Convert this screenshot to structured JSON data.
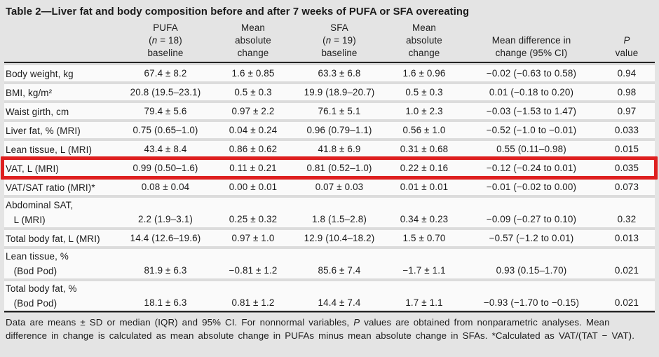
{
  "title": "Table 2—Liver fat and body composition before and after 7 weeks of PUFA or SFA overeating",
  "colors": {
    "highlight_red": "#de1f1f",
    "row_bg": "#fafafa",
    "page_bg": "#e4e4e4",
    "rule_black": "#232323"
  },
  "header": {
    "pufa": {
      "line1": "PUFA",
      "n_open": "(",
      "n": "n",
      "n_rest": " = 18)",
      "line3": "baseline"
    },
    "abs1": {
      "line1": "Mean",
      "line2": "absolute",
      "line3": "change"
    },
    "sfa": {
      "line1": "SFA",
      "n_open": "(",
      "n": "n",
      "n_rest": " = 19)",
      "line3": "baseline"
    },
    "abs2": {
      "line1": "Mean",
      "line2": "absolute",
      "line3": "change"
    },
    "diff": {
      "line1": "Mean difference in",
      "line2": "change (95% CI)"
    },
    "p": {
      "line1": "P",
      "line2": "value"
    }
  },
  "rows": [
    {
      "label": "Body weight, kg",
      "cells": [
        "67.4 ± 8.2",
        "1.6 ± 0.85",
        "63.3 ± 6.8",
        "1.6 ± 0.96",
        "−0.02 (−0.63 to 0.58)",
        "0.94"
      ],
      "highlight": false
    },
    {
      "label": "BMI, kg/m²",
      "cells": [
        "20.8 (19.5–23.1)",
        "0.5 ± 0.3",
        "19.9 (18.9–20.7)",
        "0.5 ± 0.3",
        "0.01 (−0.18 to 0.20)",
        "0.98"
      ],
      "highlight": false
    },
    {
      "label": "Waist girth, cm",
      "cells": [
        "79.4 ± 5.6",
        "0.97 ± 2.2",
        "76.1 ± 5.1",
        "1.0 ± 2.3",
        "−0.03 (−1.53 to 1.47)",
        "0.97"
      ],
      "highlight": false
    },
    {
      "label": "Liver fat, % (MRI)",
      "cells": [
        "0.75 (0.65–1.0)",
        "0.04 ± 0.24",
        "0.96 (0.79–1.1)",
        "0.56 ± 1.0",
        "−0.52 (−1.0 to −0.01)",
        "0.033"
      ],
      "highlight": false
    },
    {
      "label": "Lean tissue, L (MRI)",
      "cells": [
        "43.4 ± 8.4",
        "0.86 ± 0.62",
        "41.8 ± 6.9",
        "0.31 ± 0.68",
        "0.55 (0.11–0.98)",
        "0.015"
      ],
      "highlight": false
    },
    {
      "label": "VAT, L (MRI)",
      "cells": [
        "0.99 (0.50–1.6)",
        "0.11 ± 0.21",
        "0.81 (0.52–1.0)",
        "0.22 ± 0.16",
        "−0.12 (−0.24 to 0.01)",
        "0.035"
      ],
      "highlight": true
    },
    {
      "label": "VAT/SAT ratio (MRI)*",
      "cells": [
        "0.08 ± 0.04",
        "0.00 ± 0.01",
        "0.07 ± 0.03",
        "0.01 ± 0.01",
        "−0.01 (−0.02 to 0.00)",
        "0.073"
      ],
      "highlight": false
    },
    {
      "label": "Abdominal SAT,\n   L (MRI)",
      "cells": [
        "2.2 (1.9–3.1)",
        "0.25 ± 0.32",
        "1.8 (1.5–2.8)",
        "0.34 ± 0.23",
        "−0.09 (−0.27 to 0.10)",
        "0.32"
      ],
      "highlight": false
    },
    {
      "label": "Total body fat, L (MRI)",
      "cells": [
        "14.4 (12.6–19.6)",
        "0.97 ± 1.0",
        "12.9 (10.4–18.2)",
        "1.5 ± 0.70",
        "−0.57 (−1.2 to 0.01)",
        "0.013"
      ],
      "highlight": false
    },
    {
      "label": "Lean tissue, %\n   (Bod Pod)",
      "cells": [
        "81.9 ± 6.3",
        "−0.81 ± 1.2",
        "85.6 ± 7.4",
        "−1.7 ± 1.1",
        "0.93 (0.15–1.70)",
        "0.021"
      ],
      "highlight": false
    },
    {
      "label": "Total body fat, %\n   (Bod Pod)",
      "cells": [
        "18.1 ± 6.3",
        "0.81 ± 1.2",
        "14.4 ± 7.4",
        "1.7 ± 1.1",
        "−0.93 (−1.70 to −0.15)",
        "0.021"
      ],
      "highlight": false
    }
  ],
  "highlight": {
    "row_label": "VAT, L (MRI)",
    "color": "#de1f1f"
  },
  "footnote": {
    "line1_pre": "Data are means ± SD or median (IQR) and 95% CI. For nonnormal variables, ",
    "p_italic": "P",
    "line1_post": " values are obtained from nonparametric analyses.",
    "line2": "Mean difference in change is calculated as mean absolute change in PUFAs minus mean absolute change in SFAs. *Calculated as",
    "line3": "VAT/(TAT − VAT)."
  }
}
